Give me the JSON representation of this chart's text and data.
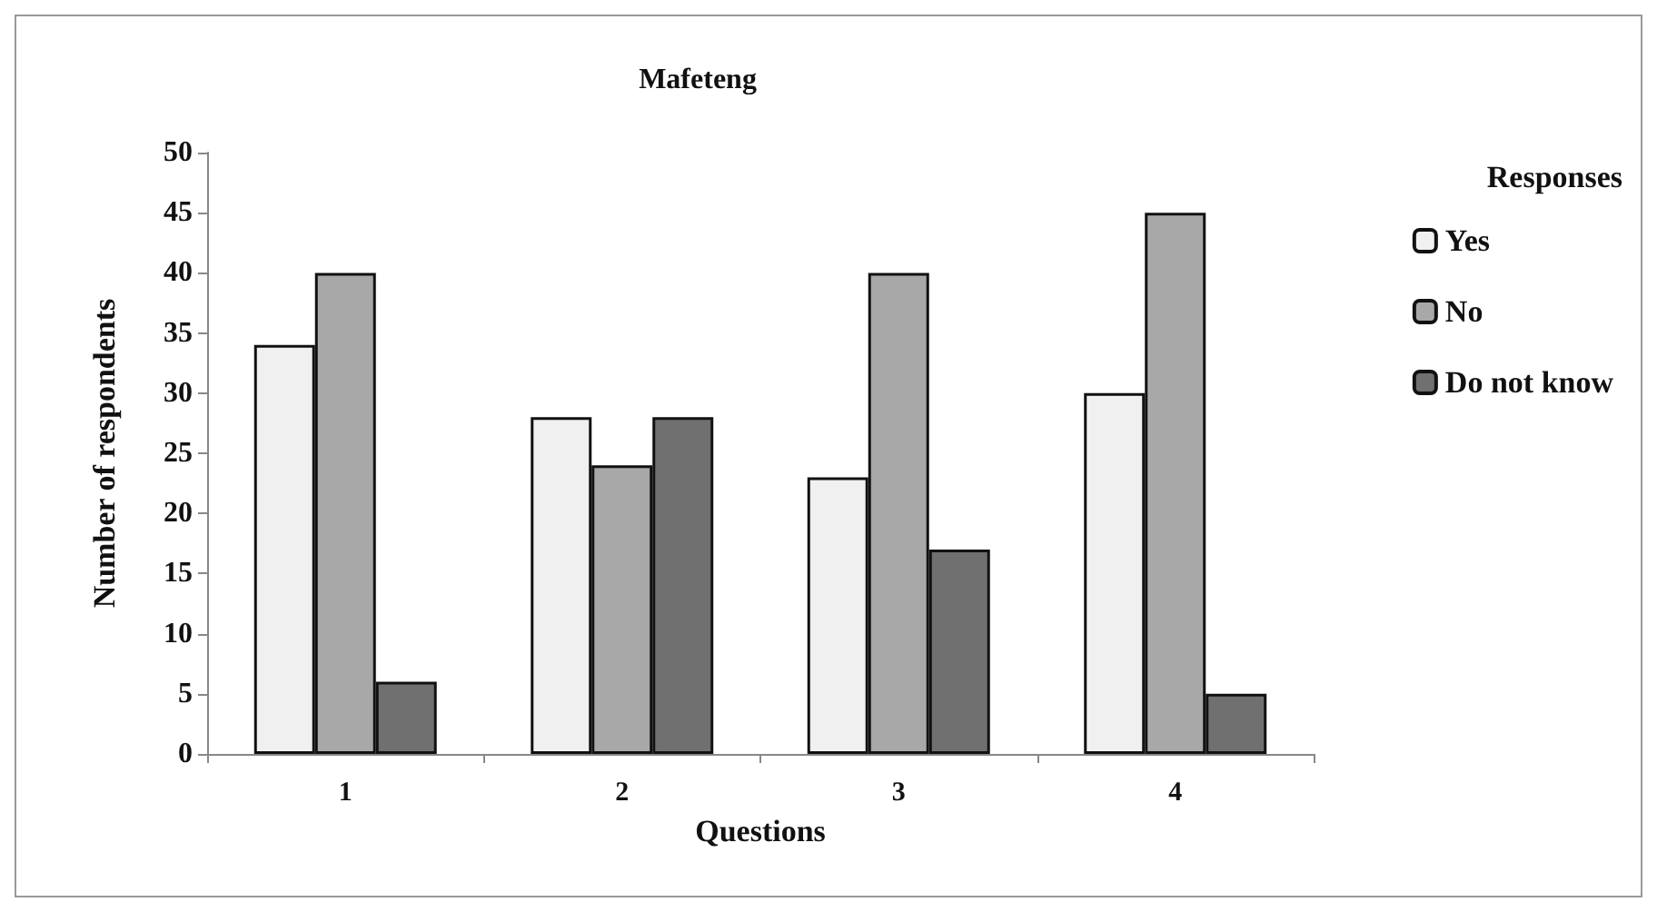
{
  "chart_data": {
    "type": "bar",
    "title": "Mafeteng",
    "xlabel": "Questions",
    "ylabel": "Number of respondents",
    "legend_title": "Responses",
    "categories": [
      "1",
      "2",
      "3",
      "4"
    ],
    "series": [
      {
        "name": "Yes",
        "color": "#f0f0f0",
        "values": [
          34,
          28,
          23,
          30
        ]
      },
      {
        "name": "No",
        "color": "#a8a8a8",
        "values": [
          40,
          24,
          40,
          45
        ]
      },
      {
        "name": "Do not know",
        "color": "#707070",
        "values": [
          6,
          28,
          17,
          5
        ]
      }
    ],
    "ylim": [
      0,
      50
    ],
    "yticks": [
      0,
      5,
      10,
      15,
      20,
      25,
      30,
      35,
      40,
      45,
      50
    ],
    "grid": false,
    "legend": "right"
  }
}
